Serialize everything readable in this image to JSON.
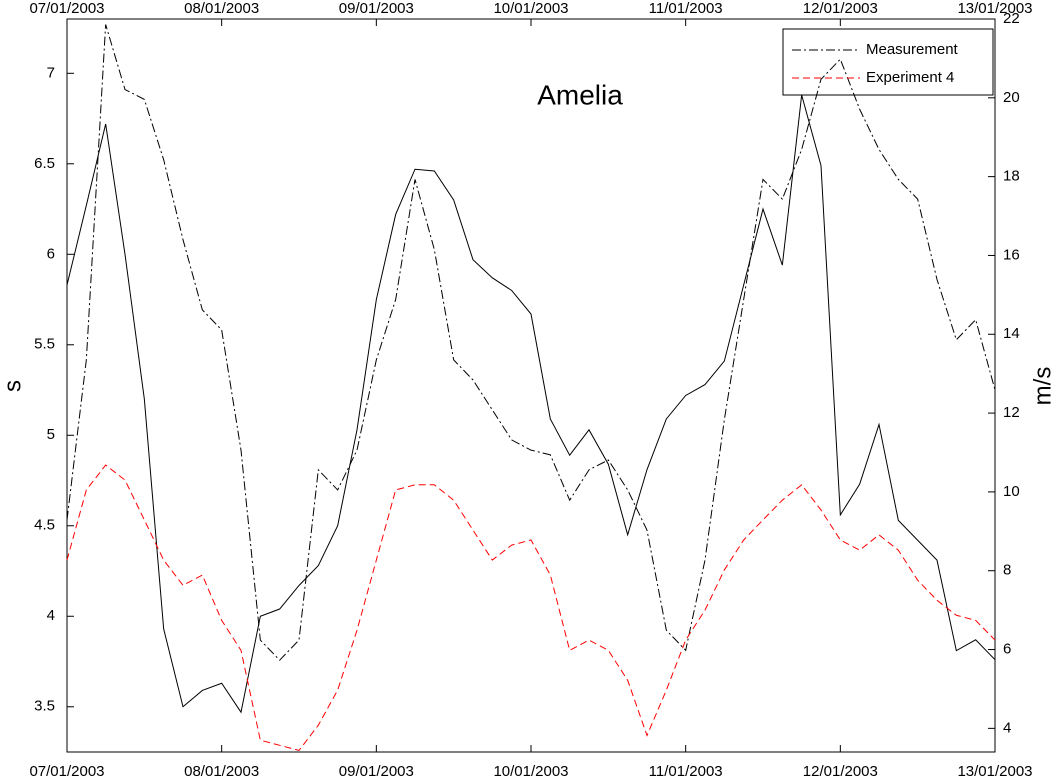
{
  "chart_data": {
    "type": "line",
    "title": "Amelia",
    "ylabel": "s",
    "y2label": "m/s",
    "x": [
      0,
      0.125,
      0.25,
      0.375,
      0.5,
      0.625,
      0.75,
      0.875,
      1,
      1.125,
      1.25,
      1.375,
      1.5,
      1.625,
      1.75,
      1.875,
      2,
      2.125,
      2.25,
      2.375,
      2.5,
      2.625,
      2.75,
      2.875,
      3,
      3.125,
      3.25,
      3.375,
      3.5,
      3.625,
      3.75,
      3.875,
      4,
      4.125,
      4.25,
      4.375,
      4.5,
      4.625,
      4.75,
      4.875,
      5,
      5.125,
      5.25,
      5.375,
      5.5,
      5.625,
      5.75,
      5.875,
      6
    ],
    "xlim": [
      0,
      6
    ],
    "xticks": [
      {
        "value": 0,
        "label": "07/01/2003"
      },
      {
        "value": 1,
        "label": "08/01/2003"
      },
      {
        "value": 2,
        "label": "09/01/2003"
      },
      {
        "value": 3,
        "label": "10/01/2003"
      },
      {
        "value": 4,
        "label": "11/01/2003"
      },
      {
        "value": 5,
        "label": "12/01/2003"
      },
      {
        "value": 6,
        "label": "13/01/2003"
      }
    ],
    "ylim": [
      3.25,
      7.3
    ],
    "yticks": [
      3.5,
      4,
      4.5,
      5,
      5.5,
      6,
      6.5,
      7
    ],
    "y2lim": [
      3.4,
      22
    ],
    "y2ticks": [
      4,
      6,
      8,
      10,
      12,
      14,
      16,
      18,
      20,
      22
    ],
    "legend": "upper right",
    "grid": false,
    "series": [
      {
        "color": "#000000",
        "linestyle": "solid",
        "values": [
          5.83,
          6.27,
          6.72,
          6.0,
          5.2,
          3.93,
          3.5,
          3.59,
          3.63,
          3.47,
          4.0,
          4.04,
          4.17,
          4.28,
          4.5,
          5.03,
          5.75,
          6.22,
          6.47,
          6.46,
          6.3,
          5.97,
          5.87,
          5.8,
          5.67,
          5.09,
          4.89,
          5.03,
          4.84,
          4.45,
          4.81,
          5.09,
          5.22,
          5.28,
          5.41,
          5.83,
          6.25,
          5.94,
          6.88,
          6.49,
          4.56,
          4.73,
          5.06,
          4.53,
          4.42,
          4.31,
          3.81,
          3.87,
          3.76
        ]
      },
      {
        "name": "Measurement",
        "color": "#000000",
        "linestyle": "dashdot",
        "axis": "y2",
        "values": [
          9.29,
          13.35,
          21.86,
          20.21,
          19.96,
          18.43,
          16.4,
          14.62,
          14.11,
          11.06,
          6.24,
          5.73,
          6.24,
          10.56,
          10.05,
          11.06,
          13.35,
          14.88,
          17.93,
          16.15,
          13.35,
          12.84,
          12.08,
          11.32,
          11.06,
          10.94,
          9.79,
          10.56,
          10.81,
          10.05,
          9.03,
          6.49,
          5.98,
          8.27,
          11.83,
          14.88,
          17.93,
          17.43,
          18.69,
          20.47,
          20.98,
          19.71,
          18.69,
          17.93,
          17.43,
          15.39,
          13.86,
          14.37,
          12.59
        ]
      },
      {
        "name": "Experiment 4",
        "color": "#ff0000",
        "linestyle": "dashed",
        "axis": "y2",
        "values": [
          8.27,
          10.05,
          10.68,
          10.3,
          9.29,
          8.27,
          7.63,
          7.89,
          6.74,
          5.98,
          3.7,
          3.57,
          3.44,
          4.08,
          4.97,
          6.49,
          8.27,
          10.05,
          10.18,
          10.18,
          9.79,
          9.03,
          8.27,
          8.65,
          8.78,
          7.89,
          5.98,
          6.24,
          5.98,
          5.22,
          3.82,
          4.97,
          6.24,
          7.0,
          8.02,
          8.78,
          9.29,
          9.79,
          10.18,
          9.54,
          8.78,
          8.52,
          8.91,
          8.52,
          7.76,
          7.25,
          6.87,
          6.74,
          6.24
        ]
      }
    ]
  }
}
